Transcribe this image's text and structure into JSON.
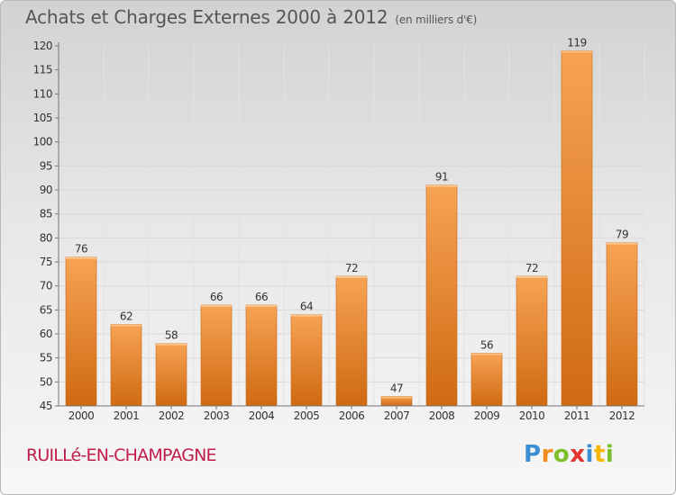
{
  "title": "Achats et Charges Externes 2000 à 2012",
  "unit_label": "(en milliers d'€)",
  "commune": "RUILLé-EN-CHAMPAGNE",
  "brand": {
    "logo_text": "Proxiti",
    "colors": [
      "#3b8fd2",
      "#f28a1c",
      "#7bbf2a",
      "#e3332f",
      "#3b8fd2",
      "#f6b600",
      "#7bbf2a"
    ]
  },
  "colors": {
    "bar_top": "#f7a354",
    "bar_bottom": "#cf6a12",
    "title": "#555555",
    "commune": "#c11d4a"
  },
  "chart_data": {
    "type": "bar",
    "categories": [
      "2000",
      "2001",
      "2002",
      "2003",
      "2004",
      "2005",
      "2006",
      "2007",
      "2008",
      "2009",
      "2010",
      "2011",
      "2012"
    ],
    "values": [
      76,
      62,
      58,
      66,
      66,
      64,
      72,
      47,
      91,
      56,
      72,
      119,
      79
    ],
    "ylim": [
      45,
      120
    ],
    "yticks": [
      45,
      50,
      55,
      60,
      65,
      70,
      75,
      80,
      85,
      90,
      95,
      100,
      105,
      110,
      115,
      120
    ],
    "grid": true,
    "xlabel": "",
    "ylabel": ""
  }
}
